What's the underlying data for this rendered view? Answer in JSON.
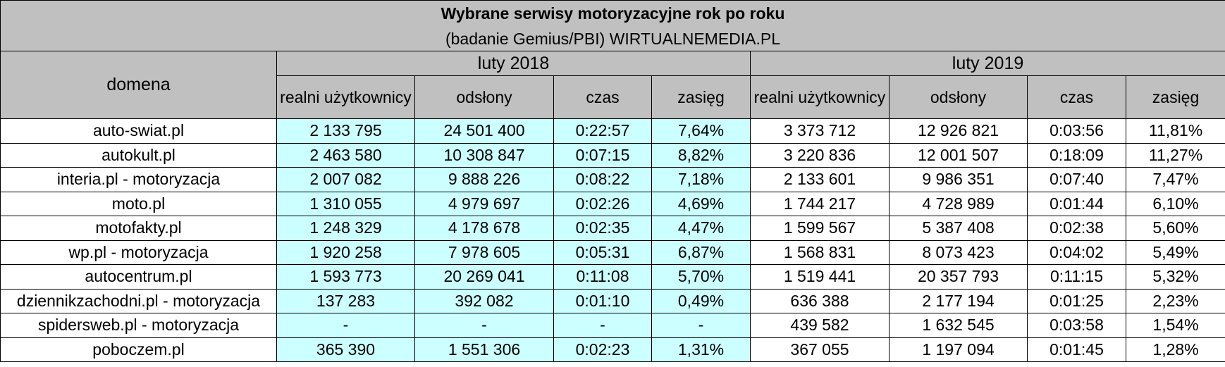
{
  "title": "Wybrane serwisy motoryzacyjne rok po roku",
  "subtitle": "(badanie Gemius/PBI) WIRTUALNEMEDIA.PL",
  "domain_header": "domena",
  "periods": [
    "luty 2018",
    "luty 2019"
  ],
  "metric_headers": [
    "realni użytkownicy",
    "odsłony",
    "czas",
    "zasięg",
    "realni użytkownicy",
    "odsłony",
    "czas",
    "zasięg"
  ],
  "colors": {
    "header_bg": "#c0c0c0",
    "period_2018_bg": "#ccffff",
    "period_2019_bg": "#ffffff",
    "border": "#000000"
  },
  "rows": [
    {
      "domain": "auto-swiat.pl",
      "values": [
        "2 133 795",
        "24 501 400",
        "0:22:57",
        "7,64%",
        "3 373 712",
        "12 926 821",
        "0:03:56",
        "11,81%"
      ]
    },
    {
      "domain": "autokult.pl",
      "values": [
        "2 463 580",
        "10 308 847",
        "0:07:15",
        "8,82%",
        "3 220 836",
        "12 001 507",
        "0:18:09",
        "11,27%"
      ]
    },
    {
      "domain": "interia.pl - motoryzacja",
      "values": [
        "2 007 082",
        "9 888 226",
        "0:08:22",
        "7,18%",
        "2 133 601",
        "9 986 351",
        "0:07:40",
        "7,47%"
      ]
    },
    {
      "domain": "moto.pl",
      "values": [
        "1 310 055",
        "4 979 697",
        "0:02:26",
        "4,69%",
        "1 744 217",
        "4 728 989",
        "0:01:44",
        "6,10%"
      ]
    },
    {
      "domain": "motofakty.pl",
      "values": [
        "1 248 329",
        "4 178 678",
        "0:02:35",
        "4,47%",
        "1 599 567",
        "5 387 408",
        "0:02:38",
        "5,60%"
      ]
    },
    {
      "domain": "wp.pl - motoryzacja",
      "values": [
        "1 920 258",
        "7 978 605",
        "0:05:31",
        "6,87%",
        "1 568 831",
        "8 073 423",
        "0:04:02",
        "5,49%"
      ]
    },
    {
      "domain": "autocentrum.pl",
      "values": [
        "1 593 773",
        "20 269 041",
        "0:11:08",
        "5,70%",
        "1 519 441",
        "20 357 793",
        "0:11:15",
        "5,32%"
      ]
    },
    {
      "domain": "dziennikzachodni.pl - motoryzacja",
      "values": [
        "137 283",
        "392 082",
        "0:01:10",
        "0,49%",
        "636 388",
        "2 177 194",
        "0:01:25",
        "2,23%"
      ]
    },
    {
      "domain": "spidersweb.pl - motoryzacja",
      "values": [
        "-",
        "-",
        "-",
        "-",
        "439 582",
        "1 632 545",
        "0:03:58",
        "1,54%"
      ]
    },
    {
      "domain": "poboczem.pl",
      "values": [
        "365 390",
        "1 551 306",
        "0:02:23",
        "1,31%",
        "367 055",
        "1 197 094",
        "0:01:45",
        "1,28%"
      ]
    }
  ]
}
